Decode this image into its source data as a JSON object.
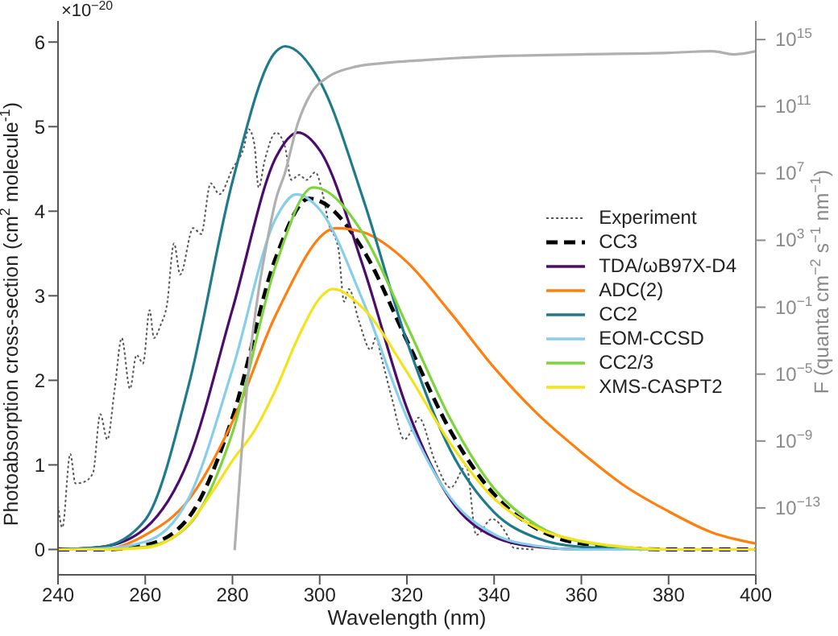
{
  "chart_data": {
    "type": "line",
    "xlabel": "Wavelength (nm)",
    "ylabel": "Photoabsorption cross-section (cm$^{2}$ molecule$^{-1}$)",
    "y2label": "F (quanta cm$^{−2}$ s$^{−1}$ nm$^{−1}$)",
    "annotations": [
      "×10$^{−20}$"
    ],
    "xlim": [
      240,
      400
    ],
    "xticks": [
      240,
      260,
      280,
      300,
      320,
      340,
      360,
      380,
      400
    ],
    "ylim": [
      -0.3,
      6.25
    ],
    "yticks": [
      0,
      1,
      2,
      3,
      4,
      5,
      6
    ],
    "y2lim": [
      1e-17,
      1.3e+16
    ],
    "y2ticks": [
      {
        "value": 1e-13,
        "label": "10$^{−13}$"
      },
      {
        "value": 1e-09,
        "label": "10$^{−9}$"
      },
      {
        "value": 1e-05,
        "label": "10$^{−5}$"
      },
      {
        "value": 0.1,
        "label": "10$^{−1}$"
      },
      {
        "value": 1000,
        "label": "10$^{3}$"
      },
      {
        "value": 10000000.0,
        "label": "10$^{7}$"
      },
      {
        "value": 100000000000.0,
        "label": "10$^{11}$"
      },
      {
        "value": 1000000000000000.0,
        "label": "10$^{15}$"
      }
    ],
    "log": "y2",
    "grid": false,
    "legend": "right",
    "marker": "none",
    "line_style": "solid",
    "series": [
      {
        "name": "Experiment",
        "color": "#555555",
        "line_style": "dotted",
        "x": [
          240,
          241,
          242.8,
          244,
          246,
          248,
          249.7,
          251.3,
          253,
          254.6,
          256.5,
          258,
          259.5,
          261,
          262,
          263.5,
          265,
          266.6,
          268,
          271,
          272.8,
          275,
          277,
          280,
          282.6,
          283.7,
          285,
          286,
          287.4,
          290,
          292,
          293.5,
          295.3,
          297,
          299,
          300.8,
          302,
          304.3,
          305.6,
          306.7,
          309,
          311.7,
          312.9,
          314,
          316.5,
          319.4,
          321.3,
          322.7,
          326.4,
          330,
          333.6,
          335.9,
          339.5,
          343,
          344.5,
          349
        ],
        "values": [
          0.52,
          0.26,
          1.13,
          0.78,
          0.8,
          0.9,
          1.6,
          1.3,
          1.9,
          2.5,
          1.9,
          2.3,
          2.2,
          2.83,
          2.5,
          2.65,
          2.9,
          3.62,
          3.25,
          3.8,
          3.73,
          4.33,
          4.2,
          4.5,
          4.75,
          4.97,
          4.8,
          4.28,
          4.6,
          4.93,
          4.77,
          4.37,
          4.43,
          4.37,
          4.46,
          4.18,
          3.87,
          3.55,
          2.93,
          3.08,
          2.7,
          2.36,
          2.51,
          2.3,
          1.8,
          1.3,
          1.43,
          1.56,
          1.05,
          0.73,
          0.99,
          0.17,
          0.36,
          0.17,
          0.02,
          0
        ]
      },
      {
        "name": "CC3",
        "color": "#000000",
        "line_style": "dashed",
        "x": [
          240,
          250,
          260,
          270,
          280,
          290,
          297.6,
          300,
          310,
          320,
          330,
          340,
          350,
          360,
          380,
          400
        ],
        "values": [
          0,
          0,
          0.05,
          0.38,
          1.56,
          3.46,
          4.15,
          4.12,
          3.54,
          2.47,
          1.4,
          0.65,
          0.24,
          0.07,
          0,
          0
        ]
      },
      {
        "name": "TDA/ωB97X-D4",
        "color": "#4b0c6b",
        "x": [
          240,
          250,
          260,
          270,
          280,
          290,
          295,
          300,
          310,
          320,
          330,
          340,
          350,
          360,
          380,
          400
        ],
        "values": [
          0,
          0.03,
          0.25,
          1.07,
          2.84,
          4.64,
          4.93,
          4.72,
          3.34,
          1.67,
          0.59,
          0.15,
          0.03,
          0,
          0,
          0
        ]
      },
      {
        "name": "ADC(2)",
        "color": "#ff7f0e",
        "x": [
          240,
          250,
          260,
          270,
          280,
          290,
          303.8,
          310,
          320,
          330,
          340,
          350,
          360,
          370,
          380,
          390,
          400
        ],
        "values": [
          0,
          0,
          0.17,
          0.59,
          1.51,
          2.78,
          3.8,
          3.75,
          3.4,
          2.8,
          2.15,
          1.6,
          1.15,
          0.75,
          0.45,
          0.2,
          0.07
        ]
      },
      {
        "name": "CC2",
        "color": "#1f7a8c",
        "x": [
          240,
          250,
          260,
          270,
          280,
          290,
          292.1,
          300,
          310,
          320,
          330,
          340,
          350,
          360,
          380,
          400
        ],
        "values": [
          0,
          0.03,
          0.35,
          1.95,
          4.35,
          5.89,
          5.95,
          5.54,
          4.14,
          2.46,
          1.17,
          0.44,
          0.13,
          0.03,
          0,
          0
        ]
      },
      {
        "name": "EOM-CCSD",
        "color": "#87ceeb",
        "x": [
          240,
          250,
          260,
          270,
          280,
          290,
          294.7,
          300,
          310,
          320,
          330,
          340,
          350,
          360,
          380,
          400
        ],
        "values": [
          0,
          0.01,
          0.09,
          0.61,
          2.13,
          3.92,
          4.2,
          4.02,
          2.93,
          1.56,
          0.61,
          0.18,
          0.04,
          0,
          0,
          0
        ]
      },
      {
        "name": "CC2/3",
        "color": "#7ed43c",
        "x": [
          240,
          250,
          260,
          270,
          280,
          290,
          298.5,
          300,
          310,
          320,
          330,
          340,
          350,
          360,
          380,
          400
        ],
        "values": [
          0,
          0,
          0.03,
          0.29,
          1.38,
          3.37,
          4.28,
          4.27,
          3.73,
          2.65,
          1.54,
          0.72,
          0.28,
          0.09,
          0,
          0
        ]
      },
      {
        "name": "XMS-CASPT2",
        "color": "#f5e21a",
        "x": [
          240,
          250,
          260,
          265,
          270,
          275,
          280,
          285,
          290,
          295,
          300,
          303,
          310,
          320,
          330,
          340,
          350,
          360,
          370,
          380,
          400
        ],
        "values": [
          0,
          0,
          0.02,
          0.1,
          0.3,
          0.65,
          1.05,
          1.4,
          1.9,
          2.5,
          2.97,
          3.08,
          2.85,
          2.1,
          1.25,
          0.6,
          0.25,
          0.1,
          0.03,
          0,
          0
        ]
      },
      {
        "color": "#b0b0b0",
        "axis": "y2",
        "x": [
          280.5,
          282,
          284,
          286,
          288,
          290,
          292,
          295,
          298,
          302,
          307,
          315,
          324,
          340,
          360,
          380,
          390,
          395,
          400
        ],
        "values": [
          3e-16,
          1e-10,
          0.0001,
          1,
          1000,
          300000,
          10000000.0,
          10000000000.0,
          600000000000.0,
          6000000000000.0,
          20000000000000.0,
          40000000000000.0,
          60000000000000.0,
          100000000000000.0,
          130000000000000.0,
          160000000000000.0,
          200000000000000.0,
          130000000000000.0,
          200000000000000.0
        ]
      }
    ]
  }
}
